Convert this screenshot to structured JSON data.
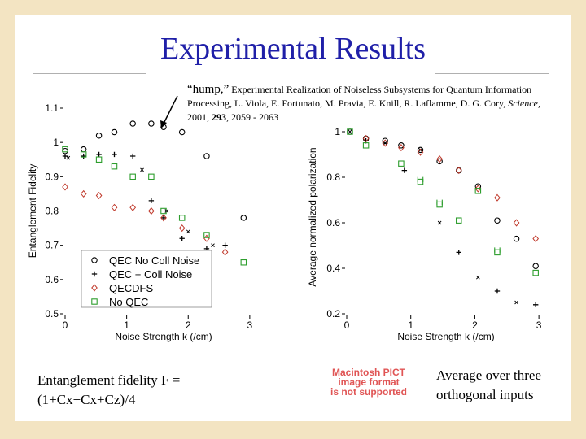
{
  "slide": {
    "title": "Experimental Results",
    "citation_hump": "“hump,”",
    "citation_line1": "Experimental Realization of Noiseless Subsystems for Quantum Information",
    "citation_line2a": "Processing, L. Viola, E. Fortunato, M. Pravia, E. Knill, R. Laflamme, D. G. Cory,",
    "citation_journal": "Science,",
    "citation_line3a": "2001,",
    "citation_volume": "293",
    "citation_line3b": ", 2059 - 2063",
    "fidelity_line1": "Entanglement fidelity F =",
    "fidelity_line2": "(1+Cx+Cx+Cz)/4",
    "average_line1": "Average over three",
    "average_line2": "orthogonal inputs",
    "pict_line1": "Macintosh PICT",
    "pict_line2": "image format",
    "pict_line3": "is not supported",
    "colors": {
      "title": "#1f1fa8",
      "frame": "#f3e4c2",
      "pict_text": "#e05555",
      "green": "#2e9e2e",
      "red": "#c0392b",
      "black": "#000000"
    }
  },
  "chart_data": [
    {
      "type": "scatter",
      "title": "",
      "xlabel": "Noise Strength k (/cm)",
      "ylabel": "Entanglement Fidelity",
      "xlim": [
        0,
        3.2
      ],
      "ylim": [
        0.5,
        1.1
      ],
      "xticks": [
        "0",
        "1",
        "2",
        "3"
      ],
      "yticks": [
        "0.5",
        "0.6",
        "0.7",
        "0.8",
        "0.9",
        "1",
        "1.1"
      ],
      "legend_position": "bottom-left",
      "series": [
        {
          "name": "QEC No Coll Noise",
          "marker": "circle",
          "color": "#000000",
          "x": [
            0.0,
            0.3,
            0.55,
            0.8,
            1.1,
            1.4,
            1.6,
            1.9,
            2.3,
            2.9
          ],
          "y": [
            0.975,
            0.98,
            1.02,
            1.03,
            1.055,
            1.055,
            1.045,
            1.03,
            0.96,
            0.78
          ]
        },
        {
          "name": "QEC + Coll Noise",
          "marker": "plus",
          "color": "#000000",
          "x": [
            0.0,
            0.3,
            0.55,
            0.8,
            1.1,
            1.4,
            1.6,
            1.9,
            2.3,
            2.6
          ],
          "y": [
            0.96,
            0.96,
            0.965,
            0.965,
            0.96,
            0.83,
            0.78,
            0.72,
            0.69,
            0.7
          ]
        },
        {
          "name": "QECDFS",
          "marker": "diamond",
          "color": "#c0392b",
          "x": [
            0.0,
            0.3,
            0.55,
            0.8,
            1.1,
            1.4,
            1.6,
            1.9,
            2.3,
            2.6
          ],
          "y": [
            0.87,
            0.85,
            0.845,
            0.81,
            0.81,
            0.8,
            0.78,
            0.75,
            0.72,
            0.68
          ]
        },
        {
          "name": "No QEC",
          "marker": "square",
          "color": "#2e9e2e",
          "x": [
            0.0,
            0.3,
            0.55,
            0.8,
            1.1,
            1.4,
            1.6,
            1.9,
            2.3,
            2.9
          ],
          "y": [
            0.98,
            0.965,
            0.95,
            0.93,
            0.9,
            0.9,
            0.8,
            0.78,
            0.73,
            0.65
          ]
        },
        {
          "name": "",
          "marker": "x",
          "color": "#000000",
          "x": [
            0.05,
            1.25,
            1.65,
            2.0,
            2.4
          ],
          "y": [
            0.955,
            0.92,
            0.8,
            0.74,
            0.7
          ]
        }
      ]
    },
    {
      "type": "scatter",
      "title": "",
      "xlabel": "Noise Strength k (/cm)",
      "ylabel": "Average normalized polarization",
      "xlim": [
        0,
        3.1
      ],
      "ylim": [
        0.2,
        1.05
      ],
      "xticks": [
        "0",
        "1",
        "2",
        "3"
      ],
      "yticks": [
        "0.2",
        "0.4",
        "0.6",
        "0.8",
        "1"
      ],
      "series": [
        {
          "name": "",
          "marker": "circle",
          "color": "#000000",
          "x": [
            0.05,
            0.3,
            0.6,
            0.85,
            1.15,
            1.45,
            1.75,
            2.05,
            2.35,
            2.65,
            2.95
          ],
          "y": [
            1.0,
            0.97,
            0.96,
            0.94,
            0.92,
            0.87,
            0.83,
            0.76,
            0.61,
            0.53,
            0.41
          ]
        },
        {
          "name": "",
          "marker": "plus",
          "color": "#000000",
          "x": [
            0.3,
            0.9,
            1.75,
            2.35,
            2.95
          ],
          "y": [
            0.96,
            0.83,
            0.47,
            0.3,
            0.24
          ]
        },
        {
          "name": "",
          "marker": "x",
          "color": "#000000",
          "x": [
            0.05,
            0.6,
            1.15,
            1.45,
            2.05,
            2.65
          ],
          "y": [
            1.0,
            0.95,
            0.92,
            0.6,
            0.36,
            0.25
          ]
        },
        {
          "name": "",
          "marker": "diamond",
          "color": "#c0392b",
          "x": [
            0.3,
            0.6,
            0.85,
            1.15,
            1.45,
            1.75,
            2.05,
            2.35,
            2.65,
            2.95
          ],
          "y": [
            0.97,
            0.95,
            0.93,
            0.91,
            0.88,
            0.83,
            0.75,
            0.71,
            0.6,
            0.53
          ]
        },
        {
          "name": "",
          "marker": "square",
          "color": "#2e9e2e",
          "x": [
            0.05,
            0.3,
            0.85,
            1.15,
            1.45,
            1.75,
            2.05,
            2.35,
            2.95
          ],
          "y": [
            1.0,
            0.94,
            0.86,
            0.78,
            0.68,
            0.61,
            0.74,
            0.47,
            0.38
          ]
        },
        {
          "name": "",
          "marker": "square-open-dash",
          "color": "#2e9e2e",
          "x": [
            1.15,
            1.45,
            2.35
          ],
          "y": [
            0.79,
            0.69,
            0.48
          ]
        }
      ]
    }
  ]
}
